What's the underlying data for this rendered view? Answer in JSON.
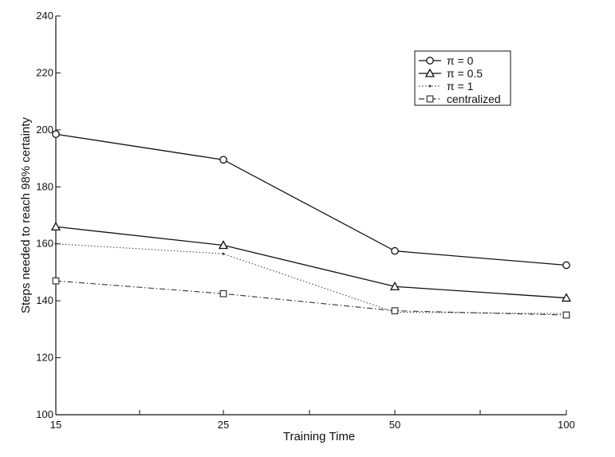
{
  "chart_data": {
    "type": "line",
    "title": "",
    "xlabel": "Training Time",
    "ylabel": "Steps needed to reach 98% certainty",
    "categories": [
      "15",
      "25",
      "50",
      "100"
    ],
    "ylim": [
      100,
      240
    ],
    "yticks": [
      100,
      120,
      140,
      160,
      180,
      200,
      220,
      240
    ],
    "grid": false,
    "legend_position": "top-right",
    "series": [
      {
        "name": "π = 0",
        "marker": "circle",
        "style": "solid",
        "color": "#111111",
        "values": [
          198.5,
          189.5,
          157.5,
          152.5
        ]
      },
      {
        "name": "π = 0.5",
        "marker": "triangle",
        "style": "solid",
        "color": "#111111",
        "values": [
          166,
          159.5,
          145,
          141
        ]
      },
      {
        "name": "π = 1",
        "marker": "dot",
        "style": "dotted",
        "color": "#444444",
        "values": [
          160,
          156.5,
          136,
          135.5
        ]
      },
      {
        "name": "centralized",
        "marker": "square",
        "style": "dashdot",
        "color": "#333333",
        "values": [
          147,
          142.5,
          136.5,
          135
        ]
      }
    ]
  }
}
